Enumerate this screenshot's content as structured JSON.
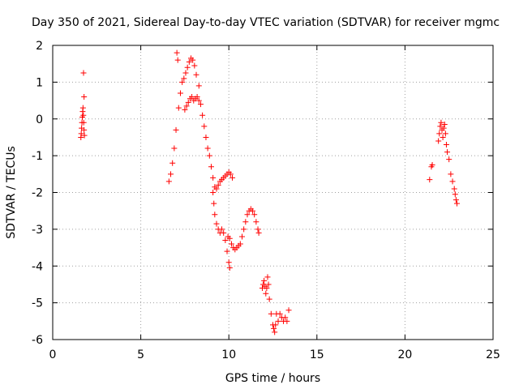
{
  "chart_data": {
    "type": "scatter",
    "title": "Day 350 of 2021, Sidereal Day-to-day VTEC variation (SDTVAR) for receiver mgmc",
    "xlabel": "GPS time / hours",
    "ylabel": "SDTVAR / TECUs",
    "xlim": [
      0,
      25
    ],
    "ylim": [
      -6,
      2
    ],
    "xticks": [
      0,
      5,
      10,
      15,
      20,
      25
    ],
    "yticks": [
      -6,
      -5,
      -4,
      -3,
      -2,
      -1,
      0,
      1,
      2
    ],
    "grid": true,
    "marker": "+",
    "color": "#ff0000",
    "series": [
      {
        "name": "SDTVAR",
        "points": [
          [
            1.6,
            -0.5
          ],
          [
            1.62,
            -0.4
          ],
          [
            1.64,
            -0.25
          ],
          [
            1.66,
            -0.1
          ],
          [
            1.68,
            0.05
          ],
          [
            1.7,
            0.2
          ],
          [
            1.72,
            0.3
          ],
          [
            1.74,
            0.1
          ],
          [
            1.76,
            -0.1
          ],
          [
            1.78,
            -0.3
          ],
          [
            1.8,
            -0.45
          ],
          [
            1.75,
            1.25
          ],
          [
            1.78,
            0.6
          ],
          [
            6.6,
            -1.7
          ],
          [
            6.7,
            -1.5
          ],
          [
            6.8,
            -1.2
          ],
          [
            6.9,
            -0.8
          ],
          [
            7.0,
            -0.3
          ],
          [
            7.05,
            1.8
          ],
          [
            7.1,
            1.6
          ],
          [
            7.15,
            0.3
          ],
          [
            7.25,
            0.7
          ],
          [
            7.35,
            1.0
          ],
          [
            7.45,
            1.1
          ],
          [
            7.55,
            1.25
          ],
          [
            7.65,
            1.4
          ],
          [
            7.75,
            1.55
          ],
          [
            7.85,
            1.65
          ],
          [
            7.95,
            1.6
          ],
          [
            8.05,
            1.45
          ],
          [
            8.15,
            1.2
          ],
          [
            7.5,
            0.25
          ],
          [
            7.6,
            0.35
          ],
          [
            7.7,
            0.45
          ],
          [
            7.8,
            0.55
          ],
          [
            7.9,
            0.6
          ],
          [
            8.0,
            0.5
          ],
          [
            8.1,
            0.55
          ],
          [
            8.2,
            0.6
          ],
          [
            8.3,
            0.5
          ],
          [
            8.3,
            0.9
          ],
          [
            8.4,
            0.4
          ],
          [
            8.5,
            0.1
          ],
          [
            8.6,
            -0.2
          ],
          [
            8.7,
            -0.5
          ],
          [
            8.8,
            -0.8
          ],
          [
            8.9,
            -1.0
          ],
          [
            9.0,
            -1.3
          ],
          [
            9.1,
            -1.6
          ],
          [
            9.2,
            -1.85
          ],
          [
            9.3,
            -1.9
          ],
          [
            9.4,
            -1.8
          ],
          [
            9.5,
            -1.7
          ],
          [
            9.6,
            -1.65
          ],
          [
            9.7,
            -1.6
          ],
          [
            9.8,
            -1.55
          ],
          [
            9.9,
            -1.5
          ],
          [
            10.0,
            -1.45
          ],
          [
            10.1,
            -1.5
          ],
          [
            10.2,
            -1.6
          ],
          [
            9.1,
            -2.0
          ],
          [
            9.15,
            -2.3
          ],
          [
            9.2,
            -2.6
          ],
          [
            9.3,
            -2.85
          ],
          [
            9.4,
            -3.0
          ],
          [
            9.5,
            -3.1
          ],
          [
            9.6,
            -3.0
          ],
          [
            9.7,
            -3.1
          ],
          [
            9.8,
            -3.3
          ],
          [
            9.9,
            -3.6
          ],
          [
            10.0,
            -3.9
          ],
          [
            10.05,
            -4.05
          ],
          [
            9.95,
            -3.2
          ],
          [
            10.05,
            -3.25
          ],
          [
            10.15,
            -3.4
          ],
          [
            10.25,
            -3.5
          ],
          [
            10.35,
            -3.55
          ],
          [
            10.45,
            -3.5
          ],
          [
            10.55,
            -3.45
          ],
          [
            10.65,
            -3.4
          ],
          [
            10.75,
            -3.2
          ],
          [
            10.85,
            -3.0
          ],
          [
            10.95,
            -2.8
          ],
          [
            11.05,
            -2.6
          ],
          [
            11.15,
            -2.5
          ],
          [
            11.25,
            -2.45
          ],
          [
            11.35,
            -2.5
          ],
          [
            11.45,
            -2.6
          ],
          [
            11.55,
            -2.8
          ],
          [
            11.65,
            -3.0
          ],
          [
            11.7,
            -3.1
          ],
          [
            11.9,
            -4.6
          ],
          [
            11.95,
            -4.5
          ],
          [
            12.0,
            -4.4
          ],
          [
            12.05,
            -4.55
          ],
          [
            12.1,
            -4.75
          ],
          [
            12.15,
            -4.6
          ],
          [
            12.2,
            -4.3
          ],
          [
            12.25,
            -4.5
          ],
          [
            12.3,
            -4.9
          ],
          [
            12.4,
            -5.3
          ],
          [
            12.5,
            -5.6
          ],
          [
            12.55,
            -5.7
          ],
          [
            12.6,
            -5.8
          ],
          [
            12.65,
            -5.6
          ],
          [
            12.7,
            -5.3
          ],
          [
            12.8,
            -5.5
          ],
          [
            12.9,
            -5.3
          ],
          [
            13.0,
            -5.4
          ],
          [
            13.1,
            -5.5
          ],
          [
            13.2,
            -5.4
          ],
          [
            13.3,
            -5.5
          ],
          [
            13.4,
            -5.2
          ],
          [
            21.4,
            -1.65
          ],
          [
            21.5,
            -1.3
          ],
          [
            21.55,
            -1.25
          ],
          [
            21.9,
            -0.6
          ],
          [
            21.95,
            -0.4
          ],
          [
            22.0,
            -0.2
          ],
          [
            22.05,
            -0.1
          ],
          [
            22.1,
            -0.3
          ],
          [
            22.15,
            -0.5
          ],
          [
            22.2,
            -0.25
          ],
          [
            22.25,
            -0.15
          ],
          [
            22.3,
            -0.4
          ],
          [
            22.35,
            -0.7
          ],
          [
            22.4,
            -0.9
          ],
          [
            22.5,
            -1.1
          ],
          [
            22.6,
            -1.5
          ],
          [
            22.7,
            -1.7
          ],
          [
            22.8,
            -1.9
          ],
          [
            22.85,
            -2.05
          ],
          [
            22.9,
            -2.2
          ],
          [
            22.95,
            -2.3
          ]
        ]
      }
    ]
  }
}
